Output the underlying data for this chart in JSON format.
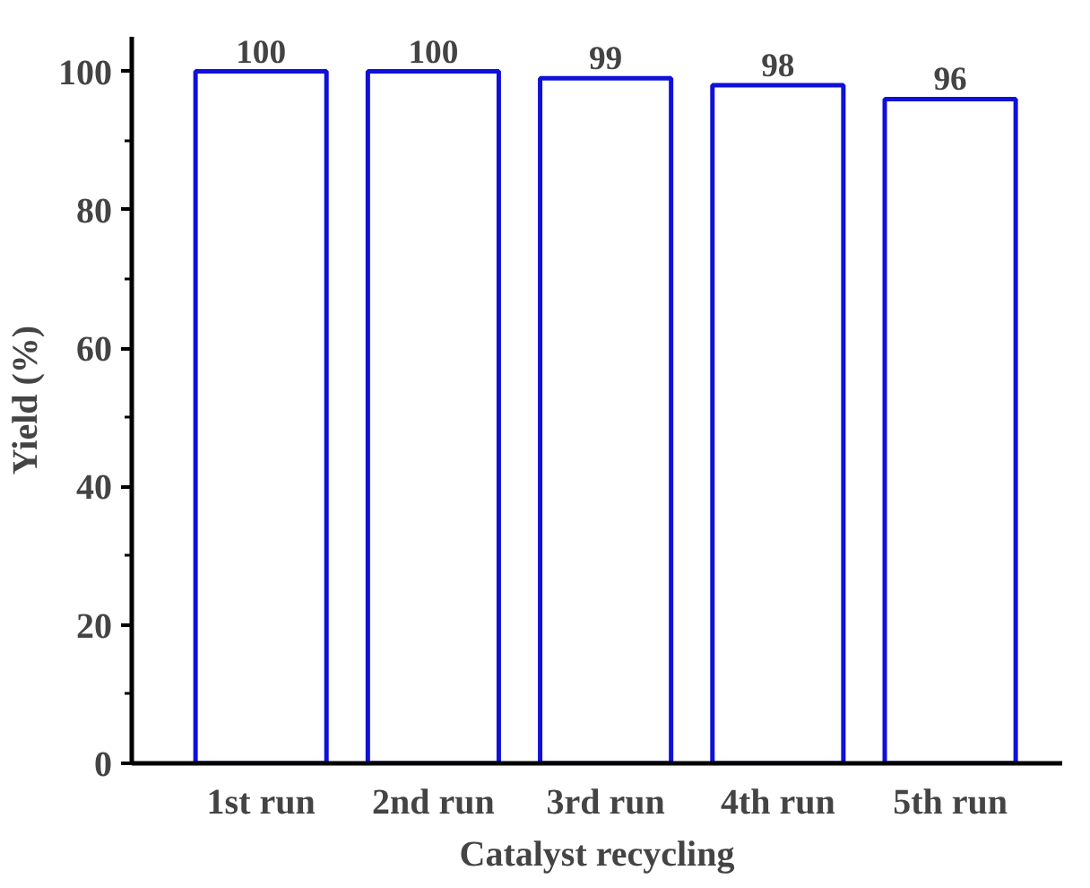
{
  "chart_data": {
    "type": "bar",
    "xlabel": "Catalyst recycling",
    "ylabel": "Yield (%)",
    "categories": [
      "1st run",
      "2nd run",
      "3rd run",
      "4th run",
      "5th run"
    ],
    "values": [
      100,
      100,
      99,
      98,
      96
    ],
    "color": "#1010d8",
    "ylim": [
      0,
      105
    ],
    "yticks": [
      0,
      {
        "value": 10,
        "label": null
      },
      20,
      {
        "value": 30,
        "label": null
      },
      40,
      {
        "value": 50,
        "label": null
      },
      60,
      {
        "value": 70,
        "label": null
      },
      80,
      {
        "value": 90,
        "label": null
      },
      100
    ],
    "data_labels": true
  }
}
